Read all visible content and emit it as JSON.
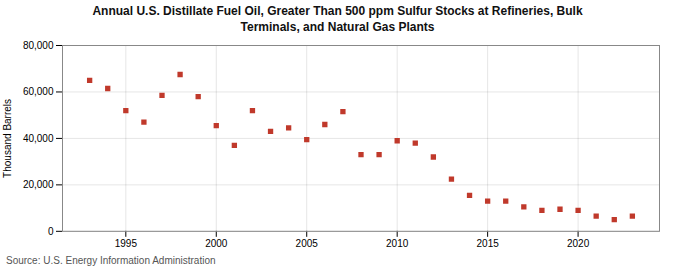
{
  "chart_data": {
    "type": "scatter",
    "title": "Annual U.S. Distillate Fuel Oil, Greater Than 500 ppm Sulfur Stocks at Refineries, Bulk\nTerminals, and Natural Gas Plants",
    "ylabel": "Thousand Barrels",
    "source": "Source: U.S. Energy Information Administration",
    "x": [
      1993,
      1994,
      1995,
      1996,
      1997,
      1998,
      1999,
      2000,
      2001,
      2002,
      2003,
      2004,
      2005,
      2006,
      2007,
      2008,
      2009,
      2010,
      2011,
      2012,
      2013,
      2014,
      2015,
      2016,
      2017,
      2018,
      2019,
      2020,
      2021,
      2022,
      2023
    ],
    "values": [
      65000,
      61500,
      52000,
      47000,
      58500,
      67500,
      58000,
      45500,
      37000,
      52000,
      43000,
      44500,
      39500,
      46000,
      51500,
      33000,
      33000,
      39000,
      38000,
      32000,
      22500,
      15500,
      13000,
      13000,
      10500,
      9000,
      9500,
      9000,
      6500,
      5000,
      6500
    ],
    "color": "#c0392b",
    "marker": "square",
    "xlim": [
      1991.5,
      2024.5
    ],
    "xticks": [
      1995,
      2000,
      2005,
      2010,
      2015,
      2020
    ],
    "ylim": [
      0,
      80000
    ],
    "yticks": [
      0,
      {
        "value": 20000,
        "label": "20,000"
      },
      {
        "value": 40000,
        "label": "40,000"
      },
      {
        "value": 60000,
        "label": "60,000"
      },
      {
        "value": 80000,
        "label": "80,000"
      }
    ],
    "grid": true
  }
}
